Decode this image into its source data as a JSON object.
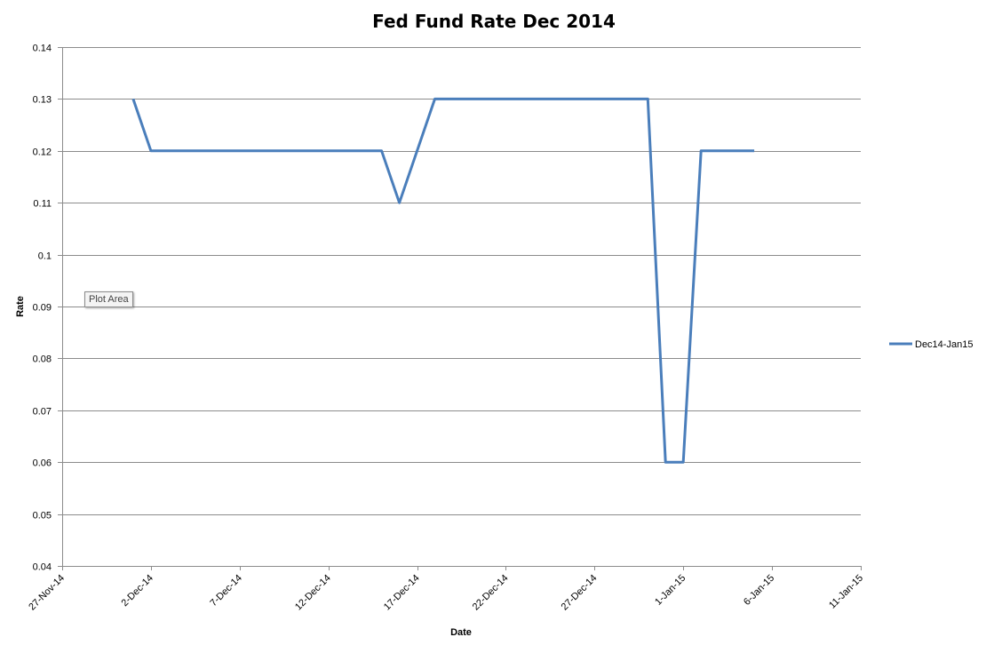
{
  "chart_data": {
    "type": "line",
    "title": "Fed Fund Rate Dec 2014",
    "xlabel": "Date",
    "ylabel": "Rate",
    "ylim": [
      0.04,
      0.14
    ],
    "y_ticks": [
      "0.04",
      "0.05",
      "0.06",
      "0.07",
      "0.08",
      "0.09",
      "0.1",
      "0.11",
      "0.12",
      "0.13",
      "0.14"
    ],
    "x_ticks": [
      "27-Nov-14",
      "2-Dec-14",
      "7-Dec-14",
      "12-Dec-14",
      "17-Dec-14",
      "22-Dec-14",
      "27-Dec-14",
      "1-Jan-15",
      "6-Jan-15",
      "11-Jan-15"
    ],
    "xlim": [
      "2014-11-27",
      "2015-01-11"
    ],
    "grid": "horizontal",
    "legend_position": "right",
    "series": [
      {
        "name": "Dec14-Jan15",
        "color": "#4a7ebb",
        "x": [
          "2014-12-01",
          "2014-12-02",
          "2014-12-15",
          "2014-12-16",
          "2014-12-18",
          "2014-12-19",
          "2014-12-30",
          "2014-12-31",
          "2015-01-01",
          "2015-01-02",
          "2015-01-05"
        ],
        "values": [
          0.13,
          0.12,
          0.12,
          0.11,
          0.13,
          0.13,
          0.13,
          0.06,
          0.06,
          0.12,
          0.12
        ]
      }
    ]
  },
  "tooltip": {
    "text": "Plot Area"
  }
}
